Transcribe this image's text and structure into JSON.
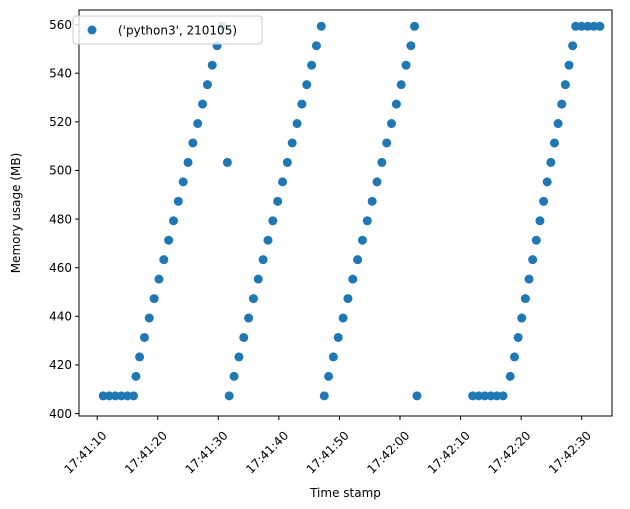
{
  "chart_data": {
    "type": "scatter",
    "title": "",
    "xlabel": "Time stamp",
    "ylabel": "Memory usage (MB)",
    "xlim": [
      "17:41:07",
      "17:42:35"
    ],
    "ylim": [
      399,
      566
    ],
    "x_ticks": [
      "17:41:10",
      "17:41:20",
      "17:41:30",
      "17:41:40",
      "17:41:50",
      "17:42:00",
      "17:42:10",
      "17:42:20",
      "17:42:30"
    ],
    "y_ticks": [
      400,
      420,
      440,
      460,
      480,
      500,
      520,
      540,
      560
    ],
    "grid": false,
    "legend_position": "top-left",
    "series": [
      {
        "name": "('python3', 210105)",
        "color": "#1f77b4",
        "marker": "circle",
        "points": [
          [
            "17:41:11",
            407.3
          ],
          [
            "17:41:12",
            407.3
          ],
          [
            "17:41:13",
            407.3
          ],
          [
            "17:41:14",
            407.3
          ],
          [
            "17:41:15",
            407.3
          ],
          [
            "17:41:16",
            407.3
          ],
          [
            "17:41:16.4",
            415.3
          ],
          [
            "17:41:17",
            423.3
          ],
          [
            "17:41:17.8",
            431.3
          ],
          [
            "17:41:18.6",
            439.3
          ],
          [
            "17:41:19.4",
            447.3
          ],
          [
            "17:41:20.2",
            455.3
          ],
          [
            "17:41:21",
            463.3
          ],
          [
            "17:41:21.8",
            471.3
          ],
          [
            "17:41:22.6",
            479.3
          ],
          [
            "17:41:23.4",
            487.3
          ],
          [
            "17:41:24.2",
            495.3
          ],
          [
            "17:41:25",
            503.3
          ],
          [
            "17:41:25.8",
            511.3
          ],
          [
            "17:41:26.6",
            519.3
          ],
          [
            "17:41:27.4",
            527.3
          ],
          [
            "17:41:28.2",
            535.3
          ],
          [
            "17:41:29",
            543.3
          ],
          [
            "17:41:29.8",
            551.3
          ],
          [
            "17:41:30.6",
            559.3
          ],
          [
            "17:41:31.5",
            503.3
          ],
          [
            "17:41:31.8",
            407.3
          ],
          [
            "17:41:32.6",
            415.3
          ],
          [
            "17:41:33.4",
            423.3
          ],
          [
            "17:41:34.2",
            431.3
          ],
          [
            "17:41:35",
            439.3
          ],
          [
            "17:41:35.8",
            447.3
          ],
          [
            "17:41:36.6",
            455.3
          ],
          [
            "17:41:37.4",
            463.3
          ],
          [
            "17:41:38.2",
            471.3
          ],
          [
            "17:41:39",
            479.3
          ],
          [
            "17:41:39.8",
            487.3
          ],
          [
            "17:41:40.6",
            495.3
          ],
          [
            "17:41:41.4",
            503.3
          ],
          [
            "17:41:42.2",
            511.3
          ],
          [
            "17:41:43",
            519.3
          ],
          [
            "17:41:43.8",
            527.3
          ],
          [
            "17:41:44.6",
            535.3
          ],
          [
            "17:41:45.4",
            543.3
          ],
          [
            "17:41:46.2",
            551.3
          ],
          [
            "17:41:47",
            559.3
          ],
          [
            "17:41:47.5",
            407.3
          ],
          [
            "17:41:48.2",
            415.3
          ],
          [
            "17:41:49",
            423.3
          ],
          [
            "17:41:49.8",
            431.3
          ],
          [
            "17:41:50.6",
            439.3
          ],
          [
            "17:41:51.4",
            447.3
          ],
          [
            "17:41:52.2",
            455.3
          ],
          [
            "17:41:53",
            463.3
          ],
          [
            "17:41:53.8",
            471.3
          ],
          [
            "17:41:54.6",
            479.3
          ],
          [
            "17:41:55.4",
            487.3
          ],
          [
            "17:41:56.2",
            495.3
          ],
          [
            "17:41:57",
            503.3
          ],
          [
            "17:41:57.8",
            511.3
          ],
          [
            "17:41:58.6",
            519.3
          ],
          [
            "17:41:59.4",
            527.3
          ],
          [
            "17:42:00.2",
            535.3
          ],
          [
            "17:42:01",
            543.3
          ],
          [
            "17:42:01.8",
            551.3
          ],
          [
            "17:42:02.4",
            559.3
          ],
          [
            "17:42:02.8",
            407.3
          ],
          [
            "17:42:12",
            407.3
          ],
          [
            "17:42:13",
            407.3
          ],
          [
            "17:42:14",
            407.3
          ],
          [
            "17:42:15",
            407.3
          ],
          [
            "17:42:16",
            407.3
          ],
          [
            "17:42:17",
            407.3
          ],
          [
            "17:42:18.2",
            415.3
          ],
          [
            "17:42:18.9",
            423.3
          ],
          [
            "17:42:19.5",
            431.3
          ],
          [
            "17:42:20.1",
            439.3
          ],
          [
            "17:42:20.7",
            447.3
          ],
          [
            "17:42:21.3",
            455.3
          ],
          [
            "17:42:21.9",
            463.3
          ],
          [
            "17:42:22.5",
            471.3
          ],
          [
            "17:42:23.1",
            479.3
          ],
          [
            "17:42:23.7",
            487.3
          ],
          [
            "17:42:24.3",
            495.3
          ],
          [
            "17:42:24.9",
            503.3
          ],
          [
            "17:42:25.5",
            511.3
          ],
          [
            "17:42:26.1",
            519.3
          ],
          [
            "17:42:26.7",
            527.3
          ],
          [
            "17:42:27.3",
            535.3
          ],
          [
            "17:42:27.9",
            543.3
          ],
          [
            "17:42:28.5",
            551.3
          ],
          [
            "17:42:29",
            559.3
          ],
          [
            "17:42:30",
            559.3
          ],
          [
            "17:42:31",
            559.3
          ],
          [
            "17:42:32",
            559.3
          ],
          [
            "17:42:33",
            559.3
          ]
        ]
      }
    ]
  }
}
